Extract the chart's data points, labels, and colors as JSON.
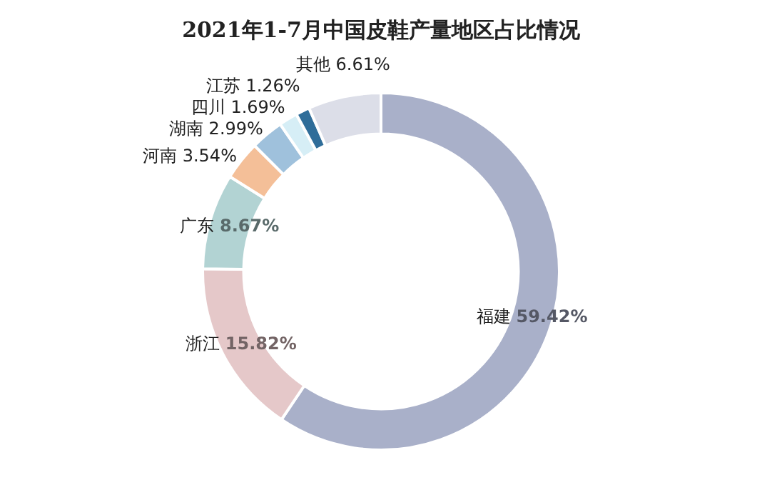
{
  "chart_data": {
    "type": "donut",
    "title": "2021年1-7月中国皮鞋产量地区占比情况",
    "categories": [
      "福建",
      "浙江",
      "广东",
      "河南",
      "湖南",
      "四川",
      "江苏",
      "其他"
    ],
    "values": [
      59.42,
      15.82,
      8.67,
      3.54,
      2.99,
      1.69,
      1.26,
      6.61
    ],
    "value_labels": [
      "59.42%",
      "15.82%",
      "8.67%",
      "3.54%",
      "2.99%",
      "1.69%",
      "1.26%",
      "6.61%"
    ],
    "colors": [
      "#a9b0c9",
      "#e5c8c9",
      "#b2d3d3",
      "#f4bf98",
      "#9fc1dc",
      "#d6eef6",
      "#2f6d99",
      "#dcdee8"
    ],
    "legend": false
  }
}
